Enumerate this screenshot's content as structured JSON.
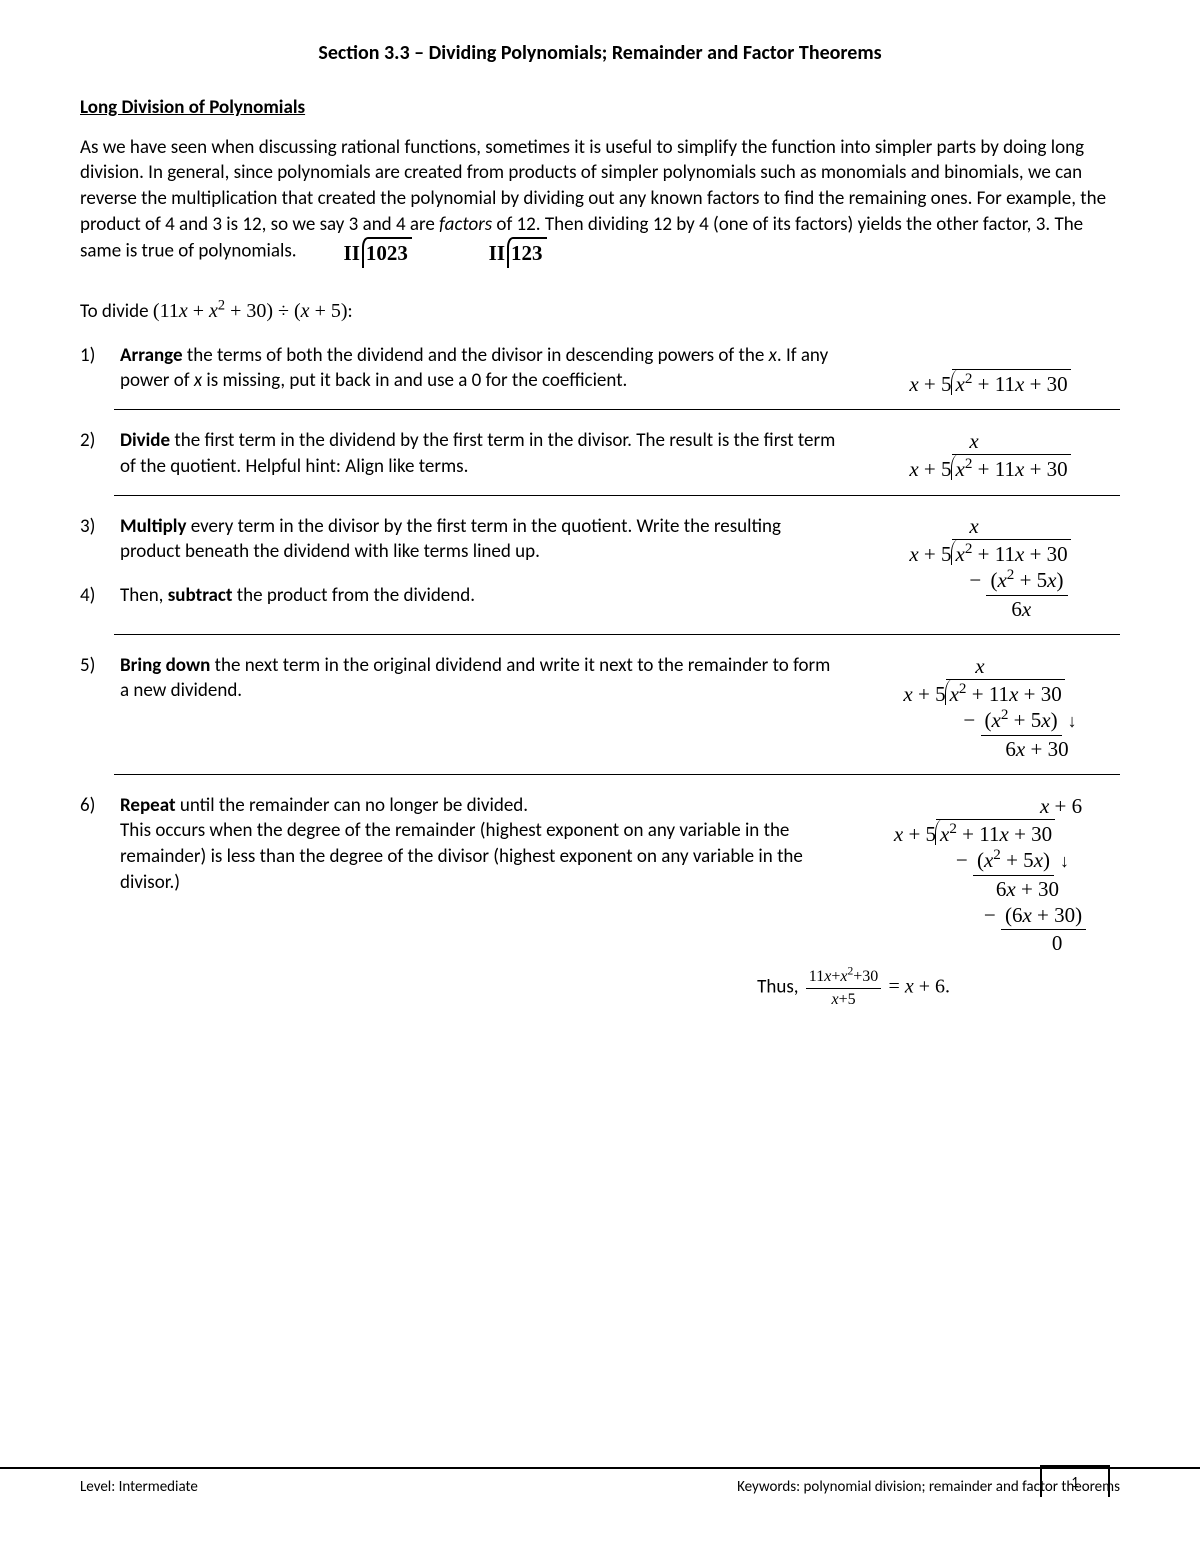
{
  "title": "Section 3.3 – Dividing Polynomials; Remainder and Factor Theorems",
  "subheading": "Long Division of Polynomials",
  "intro": {
    "p1a": "As we have seen when discussing rational functions, sometimes it is useful to simplify the function into simpler parts by doing long division. In general, since polynomials are created from products of simpler polynomials such as monomials and binomials, we can reverse the multiplication that created the polynomial by dividing out any known factors to find the remaining ones. For example, the product of 4 and 3 is 12, so we say 3 and 4 are ",
    "p1_italic": "factors",
    "p1b": " of 12. Then dividing 12 by 4 (one of its factors) yields the other factor, 3. The same is true of polynomials.",
    "inline_div1": {
      "divisor": "II",
      "dividend": "1023"
    },
    "inline_div2": {
      "divisor": "II",
      "dividend": "123"
    }
  },
  "lead": {
    "text_a": "To divide ",
    "expr": "(11x + x² + 30) ÷ (x + 5)",
    "text_b": ":"
  },
  "steps": [
    {
      "num": "1)",
      "body_html": "<b>Arrange</b> the terms of both the dividend and the divisor in descending powers of the <i>x</i>. If any power of <i>x</i> is missing, put it back in and use a 0 for the coefficient.",
      "fig": {
        "quotient": "",
        "divisor": "x + 5",
        "dividend": "x² + 11x + 30",
        "lines": []
      },
      "hr": true
    },
    {
      "num": "2)",
      "body_html": "<b>Divide</b> the first term in the dividend by the first term in the divisor. The result is the first term of the quotient. Helpful hint: Align like terms.",
      "fig": {
        "quotient": "x",
        "quotient_pad": "92px",
        "divisor": "x + 5",
        "dividend": "x² + 11x + 30",
        "lines": []
      },
      "hr": true
    },
    {
      "num": "3)",
      "body_html": "<b>Multiply</b> every term in the divisor by the first term in the quotient. Write the resulting product beneath the dividend with like terms lined up.",
      "fig": null,
      "hr": false
    },
    {
      "num": "4)",
      "body_html": "Then, <b>subtract</b> the product from the dividend.",
      "fig": {
        "quotient": "x",
        "quotient_pad": "92px",
        "divisor": "x + 5",
        "dividend": "x² + 11x + 30",
        "lines": [
          {
            "pad": "14px",
            "minus": true,
            "under": true,
            "text": "(x² + 5x)"
          },
          {
            "pad": "56px",
            "text": "6x"
          }
        ]
      },
      "fig_shift": "-70px",
      "hr": true
    },
    {
      "num": "5)",
      "body_html": "<b>Bring down</b> the next term in the original dividend and write it next to the remainder to form a new dividend.",
      "fig": {
        "quotient": "x",
        "quotient_pad": "92px",
        "divisor": "x + 5",
        "dividend": "x² + 11x + 30",
        "lines": [
          {
            "pad": "14px",
            "minus": true,
            "under": true,
            "text": "(x² + 5x)",
            "arrow": true
          },
          {
            "pad": "56px",
            "text": "6x + 30"
          }
        ]
      },
      "hr": true
    },
    {
      "num": "6)",
      "body_html": "<b>Repeat</b> until the remainder can no longer be divided.<br>This occurs when the degree of the remainder (highest exponent on any variable in the remainder) is less than the degree of the divisor (highest exponent on any variable in the divisor.)",
      "fig": {
        "quotient": "x + 6",
        "quotient_pad": "4px",
        "divisor": "x + 5",
        "dividend": "x² + 11x + 30",
        "lines": [
          {
            "pad": "16px",
            "minus": true,
            "under": true,
            "text": "(x² + 5x)",
            "arrow": true
          },
          {
            "pad": "56px",
            "text": "6x + 30"
          },
          {
            "pad": "44px",
            "minus": true,
            "under": true,
            "text": "(6x + 30)"
          },
          {
            "pad": "112px",
            "text": "0"
          }
        ]
      },
      "hr": false
    }
  ],
  "thus": {
    "label": "Thus, ",
    "frac_num": "11x + x² + 30",
    "frac_den": "x + 5",
    "eq": " = x + 6."
  },
  "footer": {
    "level": "Level: Intermediate",
    "keywords": "Keywords: polynomial division; remainder and factor theorems",
    "page": "1"
  }
}
